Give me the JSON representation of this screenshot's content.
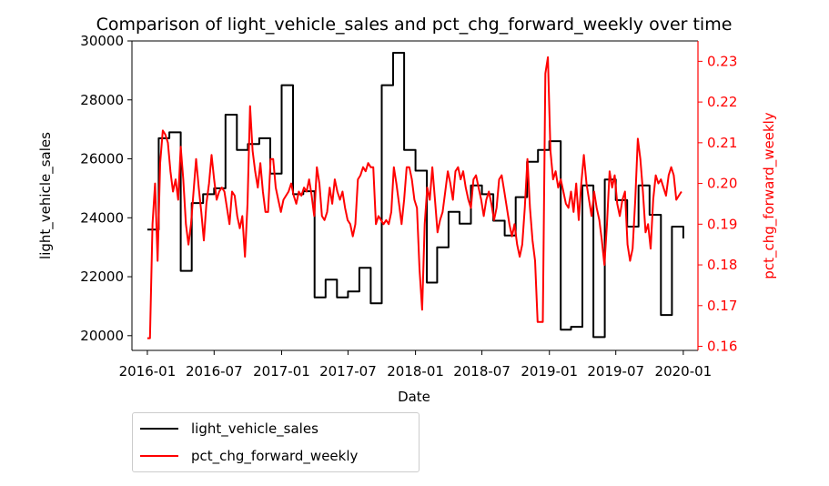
{
  "chart_data": {
    "type": "line",
    "title": "Comparison of light_vehicle_sales and pct_chg_forward_weekly over time",
    "xlabel": "Date",
    "ylabel_left": "light_vehicle_sales",
    "ylabel_right": "pct_chg_forward_weekly",
    "x_ticks": [
      "2016-01",
      "2016-07",
      "2017-01",
      "2017-07",
      "2018-01",
      "2018-07",
      "2019-01",
      "2019-07",
      "2020-01"
    ],
    "y_left_ticks": [
      20000,
      22000,
      24000,
      26000,
      28000,
      30000
    ],
    "y_right_ticks": [
      0.16,
      0.17,
      0.18,
      0.19,
      0.2,
      0.21,
      0.22,
      0.23
    ],
    "y_left_lim": [
      19500,
      30000
    ],
    "y_right_lim": [
      0.159,
      0.235
    ],
    "x_lim": [
      "2015-11-20",
      "2020-02-10"
    ],
    "legend_position": "below-left",
    "colors": {
      "light_vehicle_sales": "#000000",
      "pct_chg_forward_weekly": "#ff0000",
      "right_axis": "#ff0000"
    },
    "series": [
      {
        "name": "light_vehicle_sales",
        "axis": "left",
        "step": true,
        "points": [
          [
            "2016-01-01",
            23600
          ],
          [
            "2016-02-01",
            26700
          ],
          [
            "2016-03-01",
            26900
          ],
          [
            "2016-04-01",
            22200
          ],
          [
            "2016-05-01",
            24500
          ],
          [
            "2016-06-01",
            24800
          ],
          [
            "2016-07-01",
            25000
          ],
          [
            "2016-08-01",
            27500
          ],
          [
            "2016-09-01",
            26300
          ],
          [
            "2016-10-01",
            26500
          ],
          [
            "2016-11-01",
            26700
          ],
          [
            "2016-12-01",
            25500
          ],
          [
            "2017-01-01",
            28500
          ],
          [
            "2017-02-01",
            24800
          ],
          [
            "2017-03-01",
            24900
          ],
          [
            "2017-04-01",
            21300
          ],
          [
            "2017-05-01",
            21900
          ],
          [
            "2017-06-01",
            21300
          ],
          [
            "2017-07-01",
            21500
          ],
          [
            "2017-08-01",
            22300
          ],
          [
            "2017-09-01",
            21100
          ],
          [
            "2017-10-01",
            28500
          ],
          [
            "2017-11-01",
            29600
          ],
          [
            "2017-12-01",
            26300
          ],
          [
            "2018-01-01",
            25600
          ],
          [
            "2018-02-01",
            21800
          ],
          [
            "2018-03-01",
            23000
          ],
          [
            "2018-04-01",
            24200
          ],
          [
            "2018-05-01",
            23800
          ],
          [
            "2018-06-01",
            25100
          ],
          [
            "2018-07-01",
            24800
          ],
          [
            "2018-08-01",
            23900
          ],
          [
            "2018-09-01",
            23400
          ],
          [
            "2018-10-01",
            24700
          ],
          [
            "2018-11-01",
            25900
          ],
          [
            "2018-12-01",
            26300
          ],
          [
            "2019-01-01",
            26600
          ],
          [
            "2019-02-01",
            20200
          ],
          [
            "2019-03-01",
            20300
          ],
          [
            "2019-04-01",
            25100
          ],
          [
            "2019-05-01",
            19950
          ],
          [
            "2019-06-01",
            25300
          ],
          [
            "2019-07-01",
            24600
          ],
          [
            "2019-08-01",
            23700
          ],
          [
            "2019-09-01",
            25100
          ],
          [
            "2019-10-01",
            24100
          ],
          [
            "2019-11-01",
            20700
          ],
          [
            "2019-12-01",
            23700
          ],
          [
            "2020-01-01",
            23300
          ]
        ]
      },
      {
        "name": "pct_chg_forward_weekly",
        "axis": "right",
        "step": false,
        "points": [
          [
            "2016-01-01",
            0.162
          ],
          [
            "2016-01-08",
            0.162
          ],
          [
            "2016-01-15",
            0.19
          ],
          [
            "2016-01-22",
            0.2
          ],
          [
            "2016-01-29",
            0.181
          ],
          [
            "2016-02-05",
            0.205
          ],
          [
            "2016-02-12",
            0.213
          ],
          [
            "2016-02-19",
            0.212
          ],
          [
            "2016-02-26",
            0.21
          ],
          [
            "2016-03-04",
            0.203
          ],
          [
            "2016-03-11",
            0.198
          ],
          [
            "2016-03-18",
            0.201
          ],
          [
            "2016-03-25",
            0.196
          ],
          [
            "2016-04-01",
            0.209
          ],
          [
            "2016-04-08",
            0.201
          ],
          [
            "2016-04-15",
            0.19
          ],
          [
            "2016-04-22",
            0.185
          ],
          [
            "2016-04-29",
            0.19
          ],
          [
            "2016-05-06",
            0.198
          ],
          [
            "2016-05-13",
            0.206
          ],
          [
            "2016-05-20",
            0.199
          ],
          [
            "2016-05-27",
            0.193
          ],
          [
            "2016-06-03",
            0.186
          ],
          [
            "2016-06-10",
            0.195
          ],
          [
            "2016-06-17",
            0.2
          ],
          [
            "2016-06-24",
            0.207
          ],
          [
            "2016-07-01",
            0.201
          ],
          [
            "2016-07-08",
            0.196
          ],
          [
            "2016-07-15",
            0.198
          ],
          [
            "2016-07-22",
            0.199
          ],
          [
            "2016-07-29",
            0.198
          ],
          [
            "2016-08-05",
            0.194
          ],
          [
            "2016-08-12",
            0.19
          ],
          [
            "2016-08-19",
            0.198
          ],
          [
            "2016-08-26",
            0.197
          ],
          [
            "2016-09-02",
            0.192
          ],
          [
            "2016-09-09",
            0.189
          ],
          [
            "2016-09-16",
            0.192
          ],
          [
            "2016-09-23",
            0.182
          ],
          [
            "2016-09-30",
            0.195
          ],
          [
            "2016-10-07",
            0.219
          ],
          [
            "2016-10-14",
            0.208
          ],
          [
            "2016-10-21",
            0.203
          ],
          [
            "2016-10-28",
            0.199
          ],
          [
            "2016-11-04",
            0.205
          ],
          [
            "2016-11-11",
            0.198
          ],
          [
            "2016-11-18",
            0.193
          ],
          [
            "2016-11-25",
            0.193
          ],
          [
            "2016-12-02",
            0.206
          ],
          [
            "2016-12-09",
            0.206
          ],
          [
            "2016-12-16",
            0.199
          ],
          [
            "2016-12-23",
            0.196
          ],
          [
            "2016-12-30",
            0.193
          ],
          [
            "2017-01-06",
            0.196
          ],
          [
            "2017-01-13",
            0.197
          ],
          [
            "2017-01-20",
            0.198
          ],
          [
            "2017-01-27",
            0.2
          ],
          [
            "2017-02-03",
            0.197
          ],
          [
            "2017-02-10",
            0.195
          ],
          [
            "2017-02-17",
            0.198
          ],
          [
            "2017-02-24",
            0.197
          ],
          [
            "2017-03-03",
            0.199
          ],
          [
            "2017-03-10",
            0.198
          ],
          [
            "2017-03-17",
            0.201
          ],
          [
            "2017-03-24",
            0.197
          ],
          [
            "2017-03-31",
            0.192
          ],
          [
            "2017-04-07",
            0.204
          ],
          [
            "2017-04-14",
            0.2
          ],
          [
            "2017-04-21",
            0.192
          ],
          [
            "2017-04-28",
            0.191
          ],
          [
            "2017-05-05",
            0.193
          ],
          [
            "2017-05-12",
            0.199
          ],
          [
            "2017-05-19",
            0.195
          ],
          [
            "2017-05-26",
            0.201
          ],
          [
            "2017-06-02",
            0.198
          ],
          [
            "2017-06-09",
            0.196
          ],
          [
            "2017-06-16",
            0.198
          ],
          [
            "2017-06-23",
            0.194
          ],
          [
            "2017-06-30",
            0.191
          ],
          [
            "2017-07-07",
            0.19
          ],
          [
            "2017-07-14",
            0.187
          ],
          [
            "2017-07-21",
            0.19
          ],
          [
            "2017-07-28",
            0.201
          ],
          [
            "2017-08-04",
            0.202
          ],
          [
            "2017-08-11",
            0.204
          ],
          [
            "2017-08-18",
            0.203
          ],
          [
            "2017-08-25",
            0.205
          ],
          [
            "2017-09-01",
            0.204
          ],
          [
            "2017-09-08",
            0.204
          ],
          [
            "2017-09-15",
            0.19
          ],
          [
            "2017-09-22",
            0.192
          ],
          [
            "2017-09-29",
            0.191
          ],
          [
            "2017-10-06",
            0.19
          ],
          [
            "2017-10-13",
            0.191
          ],
          [
            "2017-10-20",
            0.19
          ],
          [
            "2017-10-27",
            0.193
          ],
          [
            "2017-11-03",
            0.204
          ],
          [
            "2017-11-10",
            0.2
          ],
          [
            "2017-11-17",
            0.195
          ],
          [
            "2017-11-24",
            0.19
          ],
          [
            "2017-12-01",
            0.196
          ],
          [
            "2017-12-08",
            0.204
          ],
          [
            "2017-12-15",
            0.204
          ],
          [
            "2017-12-22",
            0.201
          ],
          [
            "2017-12-29",
            0.196
          ],
          [
            "2018-01-05",
            0.194
          ],
          [
            "2018-01-12",
            0.179
          ],
          [
            "2018-01-19",
            0.169
          ],
          [
            "2018-01-26",
            0.19
          ],
          [
            "2018-02-02",
            0.199
          ],
          [
            "2018-02-09",
            0.196
          ],
          [
            "2018-02-16",
            0.204
          ],
          [
            "2018-02-23",
            0.196
          ],
          [
            "2018-03-02",
            0.188
          ],
          [
            "2018-03-09",
            0.191
          ],
          [
            "2018-03-16",
            0.193
          ],
          [
            "2018-03-23",
            0.198
          ],
          [
            "2018-03-30",
            0.203
          ],
          [
            "2018-04-06",
            0.2
          ],
          [
            "2018-04-13",
            0.196
          ],
          [
            "2018-04-20",
            0.203
          ],
          [
            "2018-04-27",
            0.204
          ],
          [
            "2018-05-04",
            0.201
          ],
          [
            "2018-05-11",
            0.203
          ],
          [
            "2018-05-18",
            0.199
          ],
          [
            "2018-05-25",
            0.196
          ],
          [
            "2018-06-01",
            0.194
          ],
          [
            "2018-06-08",
            0.201
          ],
          [
            "2018-06-15",
            0.202
          ],
          [
            "2018-06-22",
            0.199
          ],
          [
            "2018-06-29",
            0.196
          ],
          [
            "2018-07-06",
            0.192
          ],
          [
            "2018-07-13",
            0.196
          ],
          [
            "2018-07-20",
            0.198
          ],
          [
            "2018-07-27",
            0.195
          ],
          [
            "2018-08-03",
            0.191
          ],
          [
            "2018-08-10",
            0.194
          ],
          [
            "2018-08-17",
            0.201
          ],
          [
            "2018-08-24",
            0.202
          ],
          [
            "2018-08-31",
            0.198
          ],
          [
            "2018-09-07",
            0.194
          ],
          [
            "2018-09-14",
            0.19
          ],
          [
            "2018-09-21",
            0.187
          ],
          [
            "2018-09-28",
            0.19
          ],
          [
            "2018-10-05",
            0.185
          ],
          [
            "2018-10-12",
            0.182
          ],
          [
            "2018-10-19",
            0.185
          ],
          [
            "2018-10-26",
            0.194
          ],
          [
            "2018-11-02",
            0.206
          ],
          [
            "2018-11-09",
            0.194
          ],
          [
            "2018-11-16",
            0.186
          ],
          [
            "2018-11-23",
            0.181
          ],
          [
            "2018-11-30",
            0.166
          ],
          [
            "2018-12-07",
            0.166
          ],
          [
            "2018-12-14",
            0.166
          ],
          [
            "2018-12-21",
            0.227
          ],
          [
            "2018-12-28",
            0.231
          ],
          [
            "2019-01-04",
            0.208
          ],
          [
            "2019-01-11",
            0.201
          ],
          [
            "2019-01-18",
            0.203
          ],
          [
            "2019-01-25",
            0.199
          ],
          [
            "2019-02-01",
            0.201
          ],
          [
            "2019-02-08",
            0.198
          ],
          [
            "2019-02-15",
            0.195
          ],
          [
            "2019-02-22",
            0.194
          ],
          [
            "2019-03-01",
            0.198
          ],
          [
            "2019-03-08",
            0.193
          ],
          [
            "2019-03-15",
            0.2
          ],
          [
            "2019-03-22",
            0.191
          ],
          [
            "2019-03-29",
            0.2
          ],
          [
            "2019-04-05",
            0.207
          ],
          [
            "2019-04-12",
            0.2
          ],
          [
            "2019-04-19",
            0.196
          ],
          [
            "2019-04-26",
            0.192
          ],
          [
            "2019-05-03",
            0.198
          ],
          [
            "2019-05-10",
            0.194
          ],
          [
            "2019-05-17",
            0.191
          ],
          [
            "2019-05-24",
            0.186
          ],
          [
            "2019-05-31",
            0.18
          ],
          [
            "2019-06-07",
            0.19
          ],
          [
            "2019-06-14",
            0.203
          ],
          [
            "2019-06-21",
            0.199
          ],
          [
            "2019-06-28",
            0.202
          ],
          [
            "2019-07-05",
            0.195
          ],
          [
            "2019-07-12",
            0.192
          ],
          [
            "2019-07-19",
            0.196
          ],
          [
            "2019-07-26",
            0.198
          ],
          [
            "2019-08-02",
            0.185
          ],
          [
            "2019-08-09",
            0.181
          ],
          [
            "2019-08-16",
            0.184
          ],
          [
            "2019-08-23",
            0.196
          ],
          [
            "2019-08-30",
            0.211
          ],
          [
            "2019-09-06",
            0.206
          ],
          [
            "2019-09-13",
            0.198
          ],
          [
            "2019-09-20",
            0.188
          ],
          [
            "2019-09-27",
            0.19
          ],
          [
            "2019-10-04",
            0.184
          ],
          [
            "2019-10-11",
            0.196
          ],
          [
            "2019-10-18",
            0.202
          ],
          [
            "2019-10-25",
            0.2
          ],
          [
            "2019-11-01",
            0.201
          ],
          [
            "2019-11-08",
            0.199
          ],
          [
            "2019-11-15",
            0.197
          ],
          [
            "2019-11-22",
            0.202
          ],
          [
            "2019-11-29",
            0.204
          ],
          [
            "2019-12-06",
            0.202
          ],
          [
            "2019-12-13",
            0.196
          ],
          [
            "2019-12-20",
            0.197
          ],
          [
            "2019-12-27",
            0.198
          ]
        ]
      }
    ]
  },
  "legend": {
    "items": [
      {
        "label": "light_vehicle_sales",
        "color": "#000000"
      },
      {
        "label": "pct_chg_forward_weekly",
        "color": "#ff0000"
      }
    ]
  }
}
